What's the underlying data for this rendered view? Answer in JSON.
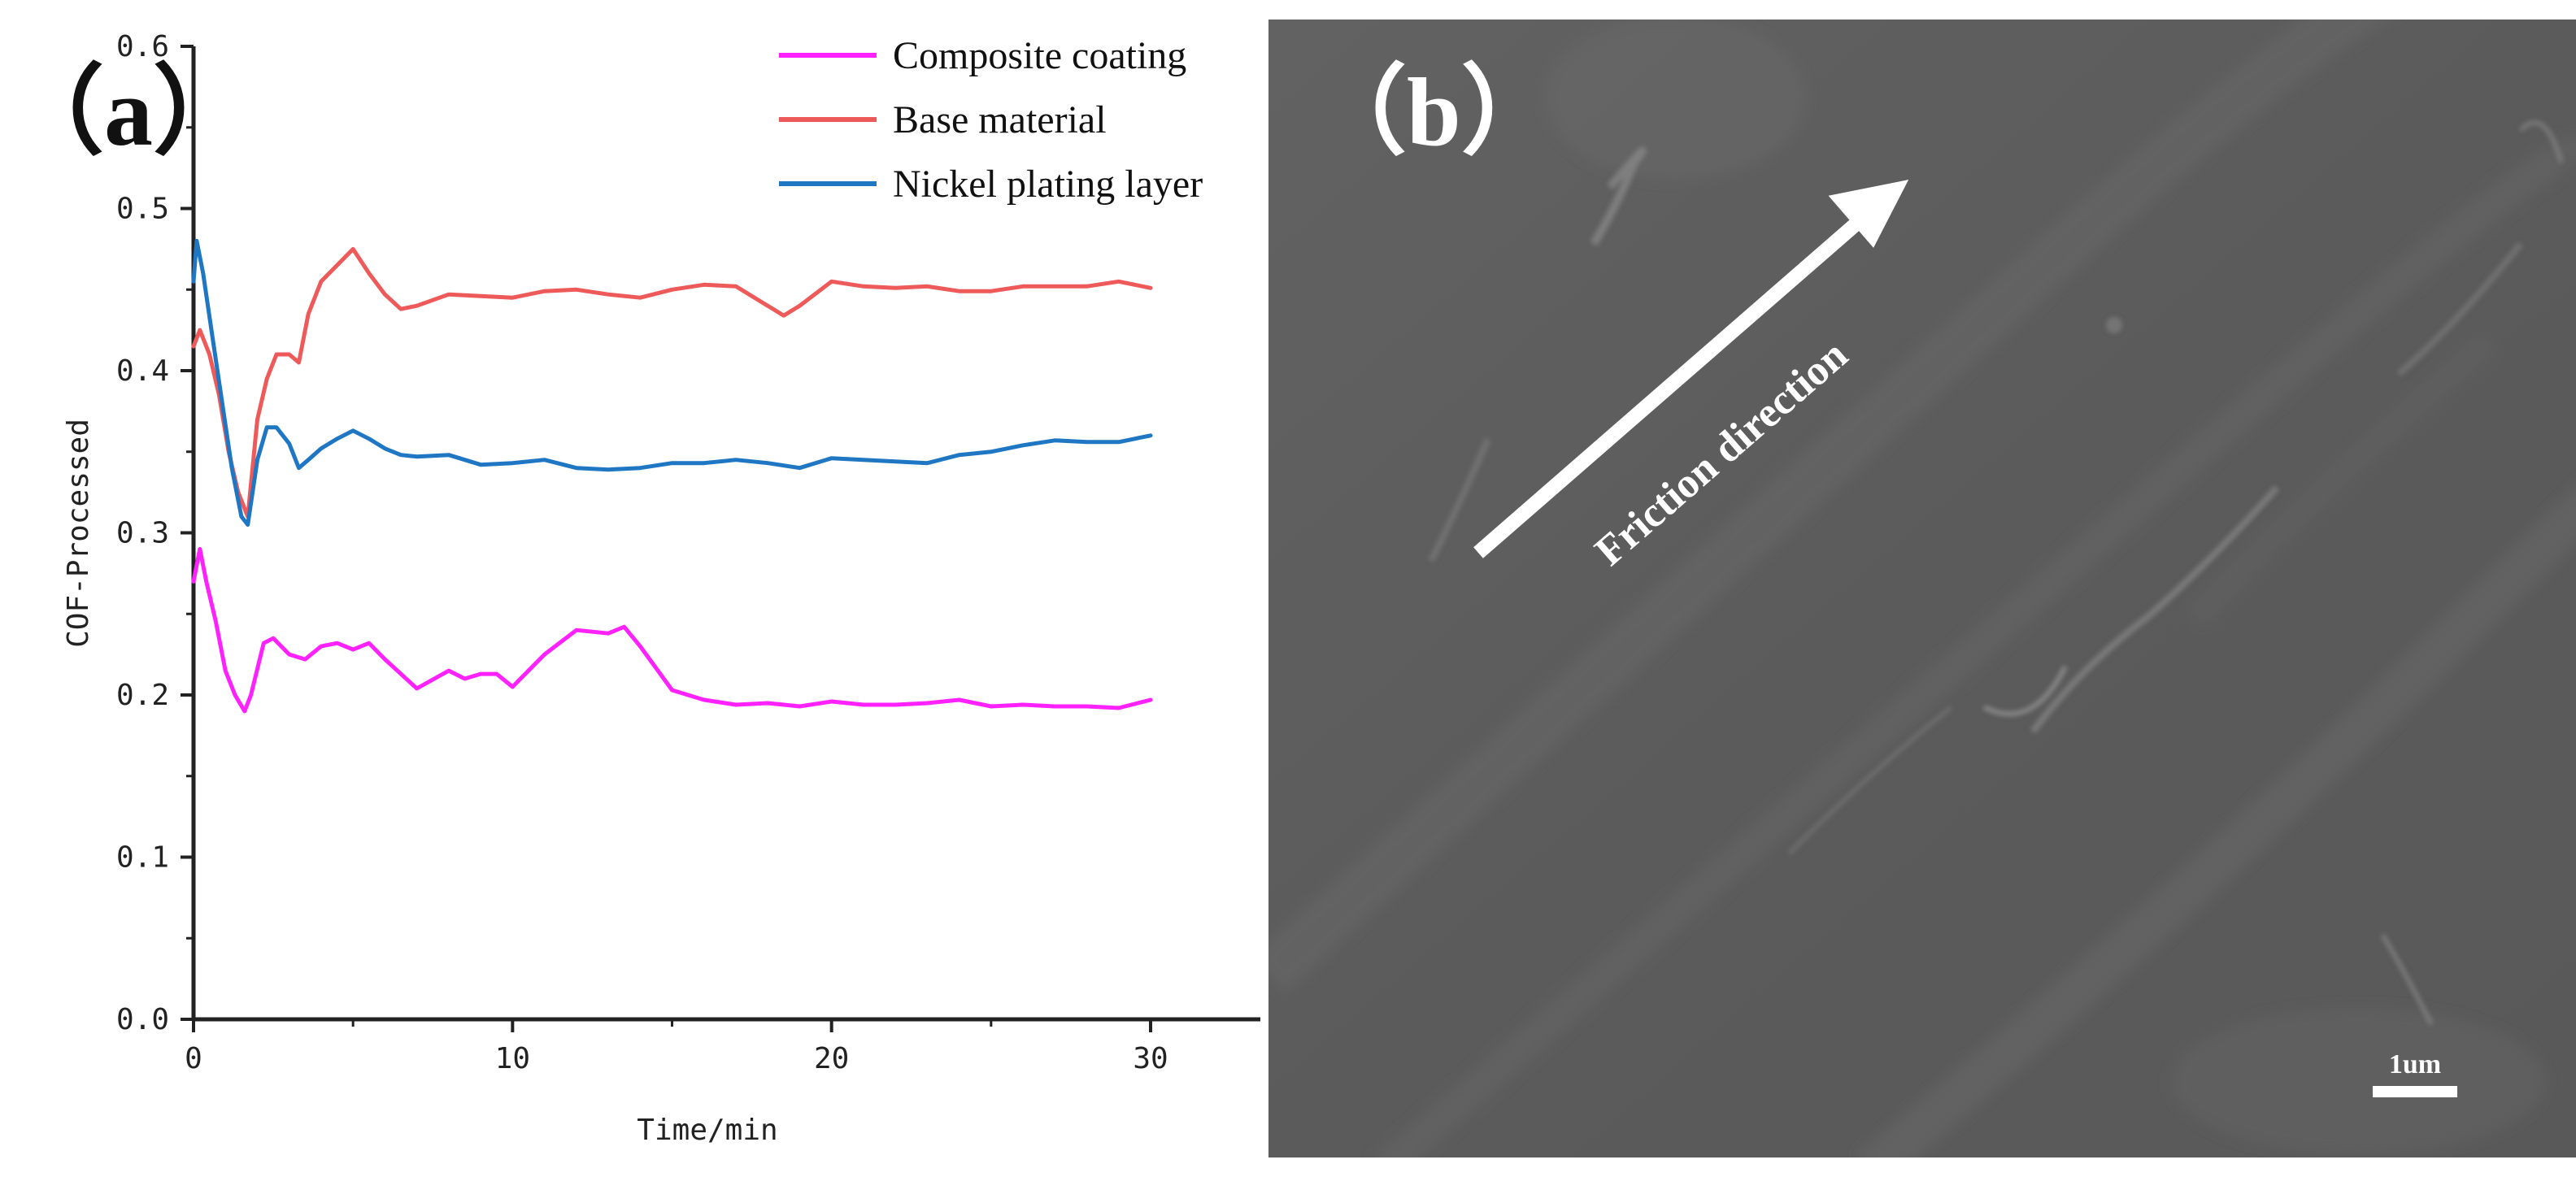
{
  "panel_a": {
    "label": "（a）"
  },
  "panel_b": {
    "label": "（b）",
    "arrow_label": "Friction direction",
    "scale_bar_label": "1um"
  },
  "colors": {
    "composite": "#ff22ff",
    "base": "#ee5a5a",
    "nickel": "#1f77c4",
    "axis": "#222222",
    "sem_background": "#5d5d5d"
  },
  "chart_data": {
    "type": "line",
    "title": "",
    "xlabel": "Time/min",
    "ylabel": "COF-Processed",
    "xlim": [
      0,
      33
    ],
    "ylim": [
      0.0,
      0.6
    ],
    "xticks": [
      0,
      10,
      20,
      30
    ],
    "xtick_labels": [
      "0",
      "10",
      "20",
      "30"
    ],
    "yticks": [
      0.0,
      0.1,
      0.2,
      0.3,
      0.4,
      0.5,
      0.6
    ],
    "ytick_labels": [
      "0.0",
      "0.1",
      "0.2",
      "0.3",
      "0.4",
      "0.5",
      "0.6"
    ],
    "legend_position": "top-right",
    "series": [
      {
        "name": "Composite coating",
        "color": "#ff22ff",
        "x": [
          0,
          0.2,
          0.4,
          0.7,
          1.0,
          1.3,
          1.6,
          1.8,
          2.2,
          2.5,
          3.0,
          3.5,
          4.0,
          4.5,
          5.0,
          5.5,
          6.0,
          7.0,
          8.0,
          8.5,
          9.0,
          9.5,
          10.0,
          11.0,
          12.0,
          13.0,
          13.5,
          14.0,
          15.0,
          16.0,
          17.0,
          18.0,
          19.0,
          20.0,
          21.0,
          22.0,
          23.0,
          24.0,
          25.0,
          26.0,
          27.0,
          28.0,
          29.0,
          30.0
        ],
        "values": [
          0.27,
          0.29,
          0.27,
          0.245,
          0.215,
          0.2,
          0.19,
          0.2,
          0.232,
          0.235,
          0.225,
          0.222,
          0.23,
          0.232,
          0.228,
          0.232,
          0.222,
          0.204,
          0.215,
          0.21,
          0.213,
          0.213,
          0.205,
          0.225,
          0.24,
          0.238,
          0.242,
          0.23,
          0.203,
          0.197,
          0.194,
          0.195,
          0.193,
          0.196,
          0.194,
          0.194,
          0.195,
          0.197,
          0.193,
          0.194,
          0.193,
          0.193,
          0.192,
          0.197
        ]
      },
      {
        "name": "Base material",
        "color": "#ee5a5a",
        "x": [
          0,
          0.2,
          0.5,
          0.8,
          1.1,
          1.4,
          1.7,
          2.0,
          2.3,
          2.6,
          3.0,
          3.3,
          3.6,
          4.0,
          4.5,
          5.0,
          5.5,
          6.0,
          6.5,
          7.0,
          8.0,
          9.0,
          10.0,
          11.0,
          12.0,
          13.0,
          14.0,
          15.0,
          16.0,
          17.0,
          18.0,
          18.5,
          19.0,
          20.0,
          21.0,
          22.0,
          23.0,
          24.0,
          25.0,
          26.0,
          27.0,
          28.0,
          29.0,
          30.0
        ],
        "values": [
          0.415,
          0.425,
          0.41,
          0.385,
          0.35,
          0.325,
          0.31,
          0.37,
          0.395,
          0.41,
          0.41,
          0.405,
          0.435,
          0.455,
          0.465,
          0.475,
          0.46,
          0.447,
          0.438,
          0.44,
          0.447,
          0.446,
          0.445,
          0.449,
          0.45,
          0.447,
          0.445,
          0.45,
          0.453,
          0.452,
          0.44,
          0.434,
          0.44,
          0.455,
          0.452,
          0.451,
          0.452,
          0.449,
          0.449,
          0.452,
          0.452,
          0.452,
          0.455,
          0.451
        ]
      },
      {
        "name": "Nickel plating layer",
        "color": "#1f77c4",
        "x": [
          0,
          0.1,
          0.3,
          0.6,
          0.9,
          1.2,
          1.5,
          1.7,
          2.0,
          2.3,
          2.6,
          3.0,
          3.3,
          3.6,
          4.0,
          4.5,
          5.0,
          5.5,
          6.0,
          6.5,
          7.0,
          8.0,
          9.0,
          10.0,
          11.0,
          12.0,
          13.0,
          14.0,
          15.0,
          16.0,
          17.0,
          18.0,
          19.0,
          20.0,
          21.0,
          22.0,
          23.0,
          24.0,
          25.0,
          26.0,
          27.0,
          28.0,
          29.0,
          30.0
        ],
        "values": [
          0.455,
          0.48,
          0.46,
          0.42,
          0.38,
          0.34,
          0.31,
          0.305,
          0.345,
          0.365,
          0.365,
          0.355,
          0.34,
          0.345,
          0.352,
          0.358,
          0.363,
          0.358,
          0.352,
          0.348,
          0.347,
          0.348,
          0.342,
          0.343,
          0.345,
          0.34,
          0.339,
          0.34,
          0.343,
          0.343,
          0.345,
          0.343,
          0.34,
          0.346,
          0.345,
          0.344,
          0.343,
          0.348,
          0.35,
          0.354,
          0.357,
          0.356,
          0.356,
          0.36
        ]
      }
    ]
  }
}
